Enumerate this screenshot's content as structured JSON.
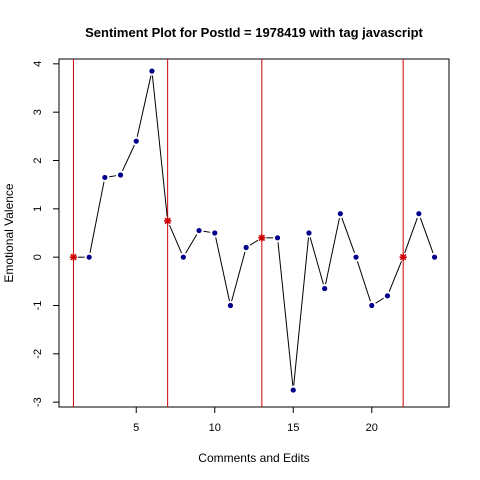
{
  "chart_data": {
    "type": "line",
    "title": "Sentiment Plot for PostId =  1978419  with tag  javascript",
    "xlabel": "Comments and Edits",
    "ylabel": "Emotional Valence",
    "xlim": [
      0.08,
      24.92
    ],
    "ylim": [
      -3.1,
      4.1
    ],
    "x_ticks": [
      5,
      10,
      15,
      20
    ],
    "y_ticks": [
      -3,
      -2,
      -1,
      0,
      1,
      2,
      3,
      4
    ],
    "grid": false,
    "x": [
      1,
      2,
      3,
      4,
      5,
      6,
      7,
      8,
      9,
      10,
      11,
      12,
      13,
      14,
      15,
      16,
      17,
      18,
      19,
      20,
      21,
      22,
      23,
      24
    ],
    "y": [
      0,
      0,
      1.65,
      1.7,
      2.4,
      3.85,
      0.75,
      0,
      0.55,
      0.5,
      -1.0,
      0.2,
      0.4,
      0.4,
      -2.75,
      0.5,
      -0.65,
      0.9,
      0,
      -1.0,
      -0.8,
      0,
      0.9,
      0
    ],
    "edit_points": [
      1,
      7,
      13,
      22
    ],
    "colors": {
      "line": "#000000",
      "point": "#00008B",
      "edit_marker": "#CC0000",
      "vertical_line": "#CC0000"
    }
  }
}
